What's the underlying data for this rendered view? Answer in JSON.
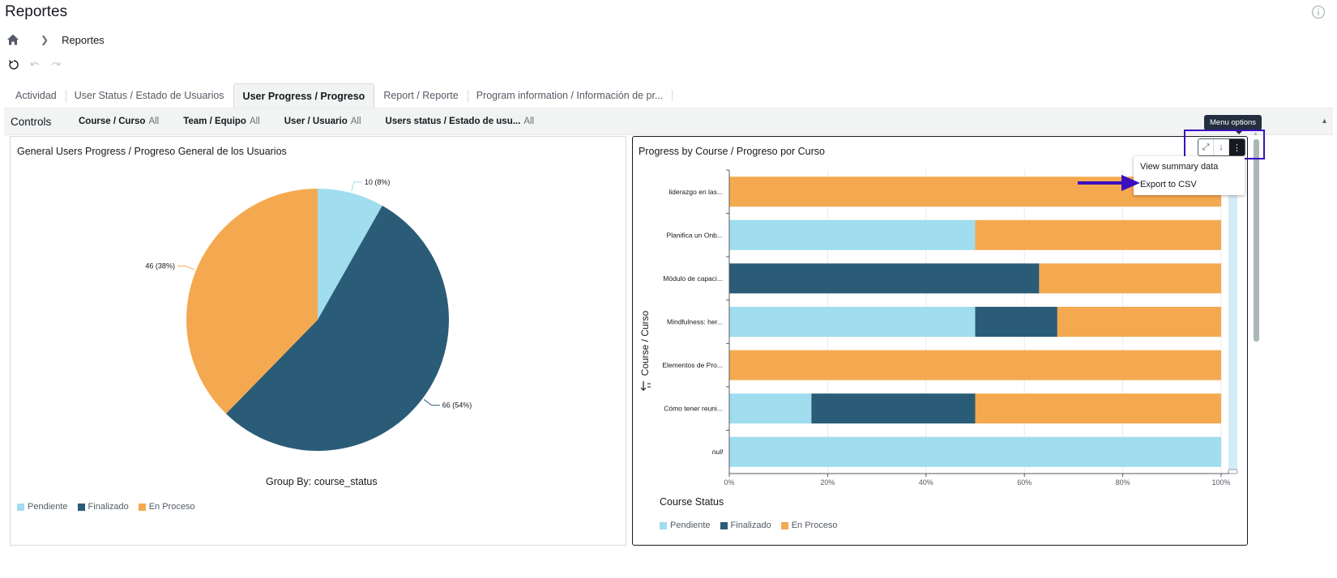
{
  "page": {
    "title": "Reportes"
  },
  "icons": {
    "info": "info-icon",
    "home": "home-icon",
    "undo": "undo-icon",
    "redo": "redo-icon"
  },
  "breadcrumb": {
    "current": "Reportes"
  },
  "tabs": [
    {
      "label": "Actividad",
      "active": false
    },
    {
      "label": "User Status / Estado de Usuarios",
      "active": false
    },
    {
      "label": "User Progress / Progreso",
      "active": true
    },
    {
      "label": "Report / Reporte",
      "active": false
    },
    {
      "label": "Program information / Información de pr...",
      "active": false
    }
  ],
  "controls": {
    "label": "Controls",
    "filters": [
      {
        "name": "Course / Curso",
        "value": "All"
      },
      {
        "name": "Team / Equipo",
        "value": "All"
      },
      {
        "name": "User / Usuario",
        "value": "All"
      },
      {
        "name": "Users status / Estado de usu...",
        "value": "All"
      }
    ]
  },
  "colors": {
    "pendiente": "#9fddef",
    "finalizado": "#2a5c77",
    "en_proceso": "#f4a950",
    "annotation": "#3b0fbf"
  },
  "pie_panel": {
    "title": "General Users Progress / Progreso General de los Usuarios",
    "caption": "Group By: course_status",
    "legend": [
      "Pendiente",
      "Finalizado",
      "En Proceso"
    ]
  },
  "bar_panel": {
    "title": "Progress by Course / Progreso por Curso",
    "axis_label": "Course / Curso",
    "x_label": "Course Status",
    "legend": [
      "Pendiente",
      "Finalizado",
      "En Proceso"
    ]
  },
  "menu": {
    "tooltip": "Menu options",
    "items": [
      "View summary data",
      "Export to CSV"
    ]
  },
  "chart_data": [
    {
      "type": "pie",
      "title": "General Users Progress / Progreso General de los Usuarios",
      "slices": [
        {
          "label": "Pendiente",
          "value": 10,
          "text": "10 (8%)"
        },
        {
          "label": "Finalizado",
          "value": 66,
          "text": "66 (54%)"
        },
        {
          "label": "En Proceso",
          "value": 46,
          "text": "46 (38%)"
        }
      ]
    },
    {
      "type": "bar",
      "orientation": "horizontal",
      "stacked": "percent",
      "title": "Progress by Course / Progreso por Curso",
      "ylabel": "Course / Curso",
      "xlabel": "Course Status",
      "categories": [
        "liderazgo en las...",
        "Planifica un Onb...",
        "Módulo de capaci...",
        "Mindfulness: her...",
        "Elementos de Pro...",
        "Cómo tener reuni...",
        "null"
      ],
      "series": [
        {
          "name": "Pendiente",
          "values": [
            0,
            50,
            0,
            50,
            0,
            16.7,
            100
          ]
        },
        {
          "name": "Finalizado",
          "values": [
            0,
            0,
            63,
            16.7,
            0,
            33.3,
            0
          ]
        },
        {
          "name": "En Proceso",
          "values": [
            100,
            50,
            37,
            33.3,
            100,
            50,
            0
          ]
        }
      ],
      "xticks": [
        "0%",
        "20%",
        "40%",
        "60%",
        "80%",
        "100%"
      ],
      "xlim": [
        0,
        100
      ]
    }
  ]
}
